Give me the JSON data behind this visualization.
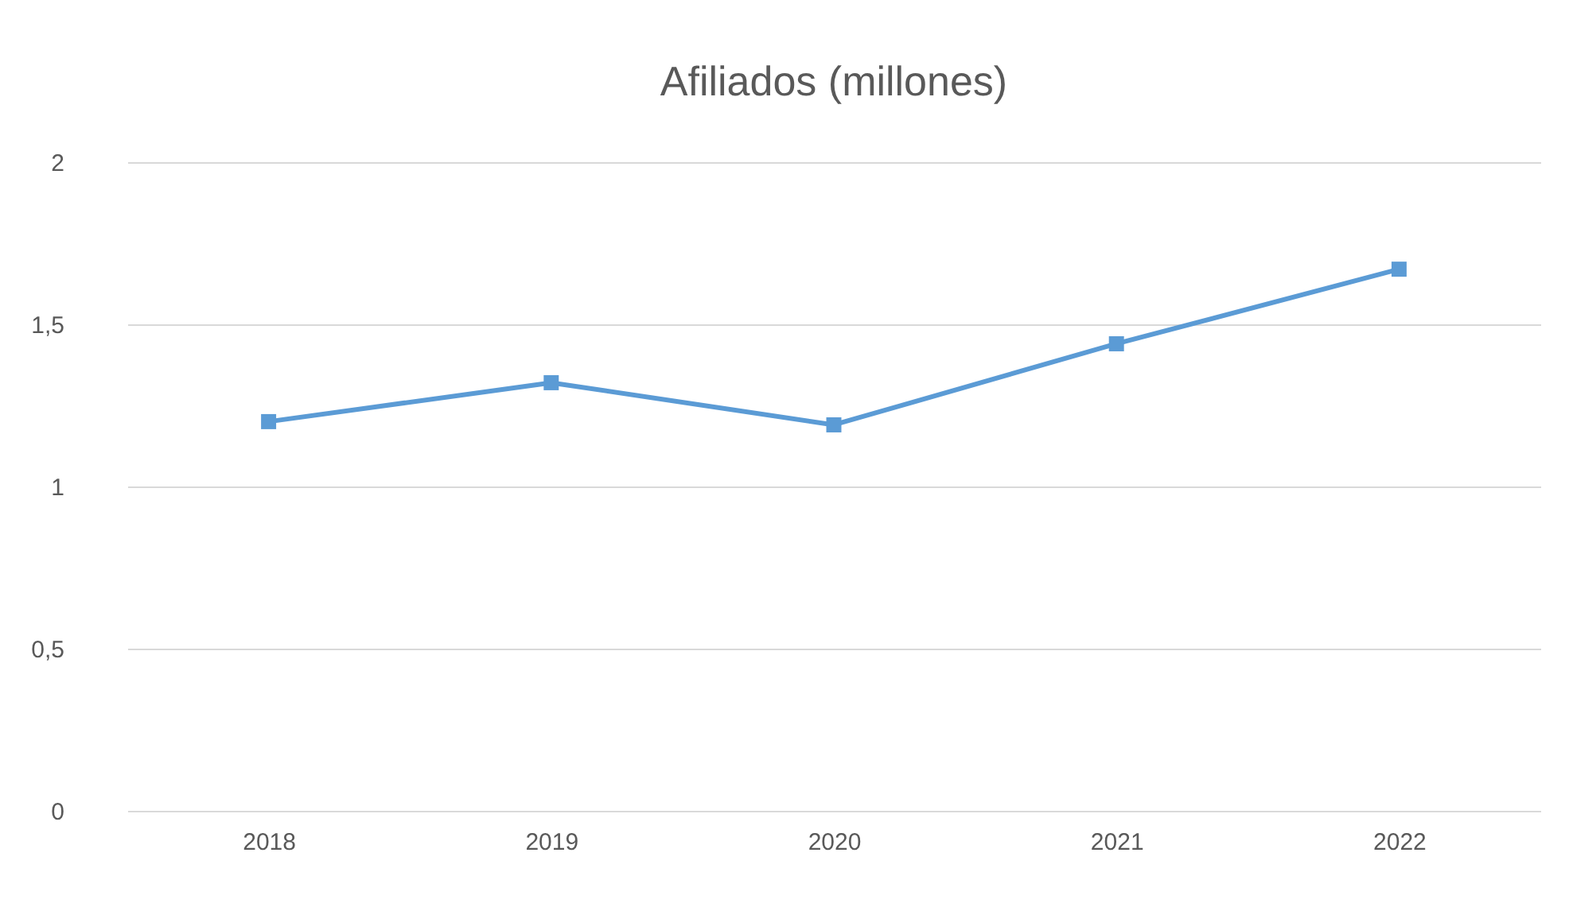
{
  "chart_data": {
    "type": "line",
    "title": "Afiliados (millones)",
    "categories": [
      "2018",
      "2019",
      "2020",
      "2021",
      "2022"
    ],
    "series": [
      {
        "color": "#5b9bd5",
        "values": [
          1.2,
          1.32,
          1.19,
          1.44,
          1.67
        ]
      }
    ],
    "ylim": [
      0,
      2
    ],
    "yticks": [
      0,
      {
        "value": 0.5,
        "label": "0,5"
      },
      1,
      {
        "value": 1.5,
        "label": "1,5"
      },
      2
    ],
    "grid": "y",
    "marker": "square"
  }
}
